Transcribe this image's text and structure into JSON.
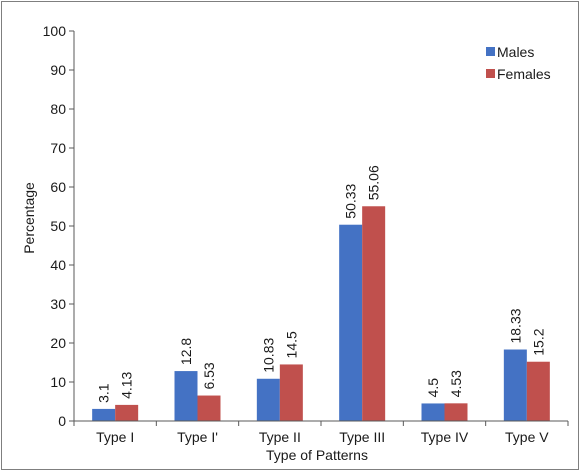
{
  "chart_data": {
    "type": "bar",
    "title": "",
    "xlabel": "Type of Patterns",
    "ylabel": "Percentage",
    "ylim": [
      0,
      100
    ],
    "yticks": [
      0,
      10,
      20,
      30,
      40,
      50,
      60,
      70,
      80,
      90,
      100
    ],
    "categories": [
      "Type I",
      "Type I'",
      "Type II",
      "Type III",
      "Type IV",
      "Type V"
    ],
    "series": [
      {
        "name": "Males",
        "color": "#4472c4",
        "values": [
          3.1,
          12.8,
          10.83,
          50.33,
          4.5,
          18.33
        ]
      },
      {
        "name": "Females",
        "color": "#c0504d",
        "values": [
          4.13,
          6.53,
          14.5,
          55.06,
          4.53,
          15.2
        ]
      }
    ],
    "grid": false,
    "legend": "top-right"
  }
}
